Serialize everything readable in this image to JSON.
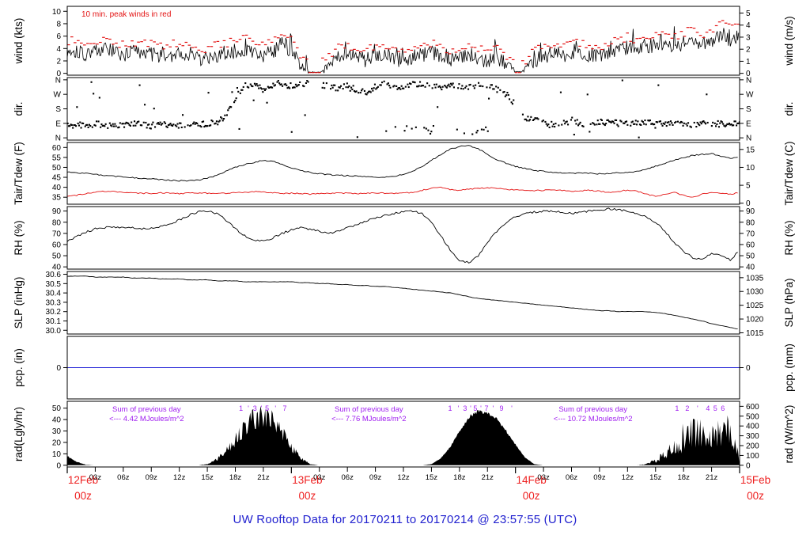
{
  "figure_title": {
    "text": "UW Rooftop Data for 20170211  to  20170214 @ 23:57:55  (UTC)",
    "color": "#2121cf"
  },
  "colors": {
    "line_black": "#000000",
    "red": "#e31212",
    "purple": "#a020f0",
    "pcp_blue": "#2323d6",
    "date_red": "#ee2222",
    "title_blue": "#2121cf",
    "panel_border": "#000000"
  },
  "x_axis": {
    "hours_total": 72,
    "major_ticks": [
      {
        "hour": 0,
        "label": "12Feb",
        "sublabel": "00z"
      },
      {
        "hour": 24,
        "label": "13Feb",
        "sublabel": "00z"
      },
      {
        "hour": 48,
        "label": "14Feb",
        "sublabel": "00z"
      },
      {
        "hour": 72,
        "label": "15Feb",
        "sublabel": "00z"
      }
    ],
    "minor_label_hours": [
      3,
      6,
      9,
      12,
      15,
      18,
      21
    ],
    "minor_labels": [
      "03z",
      "06z",
      "09z",
      "12z",
      "15z",
      "18z",
      "21z"
    ]
  },
  "chart_data": [
    {
      "id": "wind",
      "type": "line",
      "label_left": "wind (kts)",
      "label_right": "wind (m/s)",
      "ticks_left": [
        0,
        2,
        4,
        6,
        8,
        10
      ],
      "ticks_right": [
        0,
        1,
        2,
        3,
        4,
        5
      ],
      "right_to_left": {
        "factor": 1.94384,
        "offset": 0
      },
      "ylim": [
        -0.3,
        10.8
      ],
      "note": {
        "text": "10 min. peak winds in red"
      },
      "series": [
        {
          "name": "wind avg (kts)",
          "color_key": "line_black",
          "hourly": [
            3.5,
            3.8,
            3.2,
            3.6,
            4.0,
            3.4,
            3.0,
            3.3,
            3.6,
            3.2,
            2.8,
            3.0,
            3.4,
            2.6,
            2.2,
            2.5,
            3.0,
            3.3,
            3.6,
            4.0,
            3.4,
            3.0,
            3.6,
            4.2,
            3.8,
            1.5,
            0.3,
            0.2,
            1.0,
            2.5,
            3.0,
            2.6,
            2.2,
            2.8,
            3.2,
            2.4,
            2.0,
            2.6,
            3.0,
            3.4,
            2.8,
            2.2,
            2.6,
            3.0,
            2.4,
            2.0,
            2.5,
            1.5,
            0.3,
            0.5,
            2.0,
            2.8,
            3.2,
            2.6,
            3.0,
            3.5,
            3.0,
            2.5,
            3.2,
            3.8,
            4.2,
            3.6,
            4.0,
            4.5,
            5.0,
            4.4,
            4.8,
            5.4,
            4.6,
            5.2,
            6.5,
            5.5,
            5.8
          ]
        },
        {
          "name": "10 min. peak wind (kts)",
          "color_key": "red",
          "style": "dash-marks",
          "derived_from": "wind avg (kts)"
        }
      ]
    },
    {
      "id": "dir",
      "type": "scatter",
      "label_left": "dir.",
      "label_right": "dir.",
      "tick_values": [
        0,
        90,
        180,
        270,
        360
      ],
      "tick_labels": [
        "N",
        "E",
        "S",
        "W",
        "N"
      ],
      "ylim": [
        -14,
        374
      ],
      "series": [
        {
          "name": "wind direction (deg)",
          "color_key": "line_black",
          "hourly": [
            78,
            82,
            76,
            85,
            80,
            74,
            82,
            88,
            80,
            76,
            84,
            79,
            78,
            82,
            80,
            86,
            95,
            130,
            250,
            320,
            330,
            300,
            330,
            340,
            320,
            330,
            340,
            335,
            320,
            310,
            330,
            300,
            285,
            320,
            330,
            310,
            320,
            330,
            340,
            320,
            310,
            330,
            320,
            310,
            330,
            320,
            300,
            280,
            200,
            120,
            110,
            90,
            80,
            95,
            100,
            88,
            84,
            95,
            100,
            90,
            85,
            90,
            95,
            85,
            90,
            95,
            88,
            84,
            90,
            86,
            88,
            90,
            87
          ]
        }
      ]
    },
    {
      "id": "tair",
      "type": "line",
      "label_left": "Tair/Tdew (F)",
      "label_right": "Tair/Tdew (C)",
      "ticks_left": [
        35,
        40,
        45,
        50,
        55,
        60
      ],
      "ticks_right": [
        0,
        5,
        10,
        15
      ],
      "right_to_left": {
        "factor": 1.8,
        "offset": 32
      },
      "ylim": [
        31.5,
        62.5
      ],
      "series": [
        {
          "name": "Tair (F)",
          "color_key": "line_black",
          "hourly": [
            47.5,
            47.3,
            47.0,
            46.5,
            46.0,
            45.5,
            45.2,
            44.8,
            44.5,
            44.2,
            43.8,
            43.5,
            43.3,
            43.2,
            43.5,
            44.5,
            46.0,
            48.0,
            50.0,
            51.5,
            52.5,
            53.5,
            53.0,
            51.5,
            49.5,
            48.5,
            47.5,
            46.8,
            46.3,
            46.0,
            45.8,
            45.5,
            45.3,
            45.2,
            45.0,
            45.5,
            46.5,
            48.0,
            50.5,
            53.5,
            56.5,
            59.0,
            60.5,
            61.0,
            59.5,
            56.5,
            54.0,
            52.0,
            50.5,
            49.5,
            48.5,
            48.0,
            47.5,
            47.3,
            47.0,
            47.2,
            47.0,
            46.8,
            47.0,
            47.3,
            47.5,
            48.0,
            49.0,
            50.5,
            52.0,
            53.5,
            55.0,
            56.0,
            56.5,
            57.0,
            55.5,
            54.5,
            55.0
          ]
        },
        {
          "name": "Tdew (F)",
          "color_key": "red",
          "hourly": [
            35.5,
            36.0,
            36.8,
            37.5,
            38.0,
            37.8,
            37.5,
            37.3,
            37.0,
            37.0,
            37.2,
            37.0,
            36.8,
            37.0,
            37.2,
            37.0,
            36.8,
            37.0,
            37.3,
            37.5,
            37.8,
            37.5,
            37.2,
            37.0,
            37.0,
            36.8,
            36.5,
            36.8,
            37.0,
            37.2,
            37.0,
            36.8,
            37.0,
            37.2,
            37.0,
            36.8,
            37.0,
            37.5,
            38.5,
            39.5,
            40.0,
            39.0,
            38.5,
            39.0,
            39.5,
            39.8,
            39.5,
            39.0,
            38.8,
            38.5,
            38.3,
            38.5,
            38.8,
            38.5,
            38.0,
            38.3,
            38.5,
            38.0,
            37.5,
            38.0,
            38.5,
            38.0,
            36.5,
            35.5,
            36.5,
            37.5,
            36.0,
            35.0,
            36.5,
            37.5,
            37.0,
            36.5,
            37.5
          ]
        }
      ]
    },
    {
      "id": "rh",
      "type": "line",
      "label_left": "RH (%)",
      "label_right": "RH (%)",
      "ticks_left": [
        40,
        50,
        60,
        70,
        80,
        90
      ],
      "ticks_right": [
        40,
        50,
        60,
        70,
        80,
        90
      ],
      "right_to_left": {
        "factor": 1,
        "offset": 0
      },
      "ylim": [
        38,
        94
      ],
      "series": [
        {
          "name": "RH (%)",
          "color_key": "line_black",
          "hourly": [
            63,
            67,
            71,
            74,
            75,
            76,
            75,
            75,
            74,
            75,
            76,
            78,
            82,
            86,
            89,
            90,
            88,
            82,
            74,
            68,
            64,
            63,
            66,
            70,
            73,
            75,
            74,
            72,
            70,
            72,
            75,
            78,
            81,
            84,
            86,
            88,
            89,
            90,
            88,
            80,
            68,
            55,
            46,
            44,
            50,
            62,
            72,
            80,
            85,
            88,
            89,
            90,
            90,
            89,
            88,
            89,
            90,
            91,
            92,
            91,
            90,
            88,
            85,
            80,
            72,
            62,
            54,
            48,
            47,
            52,
            50,
            46,
            55
          ]
        }
      ]
    },
    {
      "id": "slp",
      "type": "line",
      "label_left": "SLP (inHg)",
      "label_right": "SLP (hPa)",
      "ticks_left": [
        30.0,
        30.1,
        30.2,
        30.3,
        30.4,
        30.5,
        30.6
      ],
      "ticks_left_labels": [
        "30.0",
        "30.1",
        "30.2",
        "30.3",
        "30.4",
        "30.5",
        "30.6"
      ],
      "ticks_right": [
        1015,
        1020,
        1025,
        1030,
        1035
      ],
      "right_to_left": {
        "factor": 0.02953,
        "offset": 0
      },
      "ylim": [
        29.96,
        30.63
      ],
      "series": [
        {
          "name": "SLP (inHg)",
          "color_key": "line_black",
          "hourly": [
            30.58,
            30.58,
            30.58,
            30.57,
            30.57,
            30.57,
            30.57,
            30.56,
            30.56,
            30.56,
            30.55,
            30.55,
            30.55,
            30.54,
            30.54,
            30.54,
            30.53,
            30.53,
            30.53,
            30.52,
            30.52,
            30.52,
            30.52,
            30.52,
            30.52,
            30.51,
            30.51,
            30.5,
            30.5,
            30.49,
            30.49,
            30.48,
            30.48,
            30.47,
            30.47,
            30.46,
            30.45,
            30.44,
            30.43,
            30.42,
            30.41,
            30.4,
            30.38,
            30.36,
            30.34,
            30.33,
            30.32,
            30.31,
            30.3,
            30.29,
            30.28,
            30.27,
            30.26,
            30.25,
            30.24,
            30.23,
            30.22,
            30.21,
            30.21,
            30.2,
            30.2,
            30.2,
            30.2,
            30.19,
            30.18,
            30.16,
            30.14,
            30.12,
            30.1,
            30.07,
            30.05,
            30.03,
            30.01
          ]
        }
      ]
    },
    {
      "id": "pcp",
      "type": "line",
      "label_left": "pcp. (in)",
      "label_right": "pcp. (mm)",
      "ticks_left": [
        0
      ],
      "ticks_right": [
        0
      ],
      "right_to_left": {
        "factor": 0.03937,
        "offset": 0
      },
      "ylim": [
        -1,
        1
      ],
      "series": [
        {
          "name": "precipitation (in)",
          "color_key": "pcp_blue",
          "constant": 0
        }
      ]
    },
    {
      "id": "rad",
      "type": "area",
      "label_left": "rad(Lgly/hr)",
      "label_right": "rad (W/m^2)",
      "ticks_left": [
        0,
        10,
        20,
        30,
        40,
        50
      ],
      "ticks_right": [
        0,
        100,
        200,
        300,
        400,
        500,
        600
      ],
      "right_to_left": {
        "factor": 0.085984,
        "offset": 0
      },
      "ylim": [
        -1.5,
        56
      ],
      "series": [
        {
          "name": "solar radiation (Lgly/hr)",
          "color_key": "line_black",
          "hourly": [
            8,
            3,
            0.5,
            0,
            0,
            0,
            0,
            0,
            0,
            0,
            0,
            0,
            0,
            0,
            0,
            1,
            5,
            12,
            22,
            32,
            40,
            44,
            38,
            28,
            16,
            6,
            1,
            0,
            0,
            0,
            0,
            0,
            0,
            0,
            0,
            0,
            0,
            0,
            0,
            1,
            6,
            16,
            30,
            42,
            47,
            46,
            40,
            30,
            18,
            7,
            1,
            0,
            0,
            0,
            0,
            0,
            0,
            0,
            0,
            0,
            0,
            0,
            1,
            4,
            10,
            16,
            20,
            30,
            28,
            24,
            30,
            26,
            10
          ]
        }
      ],
      "day_sums": [
        {
          "center_hour": 8.5,
          "line1": "Sum of previous day",
          "line2": "<--- 4.42 MJoules/m^2"
        },
        {
          "center_hour": 32.3,
          "line1": "Sum of previous day",
          "line2": "<--- 7.76 MJoules/m^2"
        },
        {
          "center_hour": 56.3,
          "line1": "Sum of previous day",
          "line2": "<--- 10.72 MJoules/m^2"
        }
      ],
      "milestones": [
        {
          "hour": 18.6,
          "label": "1"
        },
        {
          "hour": 19.4,
          "label": "'"
        },
        {
          "hour": 20.1,
          "label": "3"
        },
        {
          "hour": 20.8,
          "label": "'"
        },
        {
          "hour": 21.4,
          "label": "5"
        },
        {
          "hour": 22.3,
          "label": "'"
        },
        {
          "hour": 23.3,
          "label": "7"
        },
        {
          "hour": 41.0,
          "label": "1"
        },
        {
          "hour": 41.9,
          "label": "'"
        },
        {
          "hour": 42.6,
          "label": "3"
        },
        {
          "hour": 43.2,
          "label": "'"
        },
        {
          "hour": 43.7,
          "label": "5"
        },
        {
          "hour": 44.3,
          "label": "'"
        },
        {
          "hour": 44.9,
          "label": "7"
        },
        {
          "hour": 45.6,
          "label": "'"
        },
        {
          "hour": 46.5,
          "label": "9"
        },
        {
          "hour": 47.6,
          "label": "'"
        },
        {
          "hour": 65.3,
          "label": "1"
        },
        {
          "hour": 66.4,
          "label": "2"
        },
        {
          "hour": 67.5,
          "label": "'"
        },
        {
          "hour": 68.6,
          "label": "4"
        },
        {
          "hour": 69.4,
          "label": "5"
        },
        {
          "hour": 70.2,
          "label": "6"
        }
      ]
    }
  ]
}
